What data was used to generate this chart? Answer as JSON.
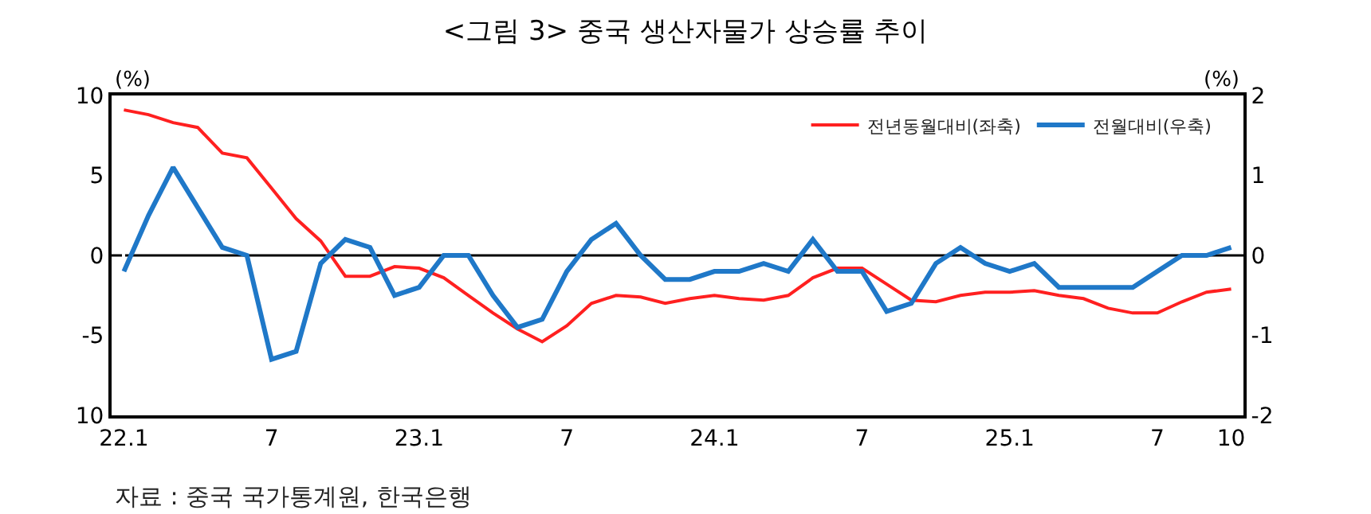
{
  "chart_data": {
    "type": "line",
    "title": "<그림 3> 중국 생산자물가 상승률 추이",
    "ylabel": "(%)",
    "y2label": "(%)",
    "annotations": [
      "자료 : 중국 국가통계원, 한국은행"
    ],
    "categories": [
      "22.1",
      null,
      null,
      null,
      null,
      null,
      "7",
      null,
      null,
      null,
      null,
      null,
      "23.1",
      null,
      null,
      null,
      null,
      null,
      "7",
      null,
      null,
      null,
      null,
      null,
      "24.1",
      null,
      null,
      null,
      null,
      null,
      "7",
      null,
      null,
      null,
      null,
      null,
      "25.1",
      null,
      null,
      null,
      null,
      null,
      "7",
      null,
      null,
      "10"
    ],
    "series": [
      {
        "name": "전년동월대비(좌축)",
        "color": "#ff2020",
        "values": [
          9.1,
          8.8,
          8.3,
          8.0,
          6.4,
          6.1,
          4.2,
          2.3,
          0.9,
          -1.3,
          -1.3,
          -0.7,
          -0.8,
          -1.4,
          -2.5,
          -3.6,
          -4.6,
          -5.4,
          -4.4,
          -3.0,
          -2.5,
          -2.6,
          -3.0,
          -2.7,
          -2.5,
          -2.7,
          -2.8,
          -2.5,
          -1.4,
          -0.8,
          -0.8,
          -1.8,
          -2.8,
          -2.9,
          -2.5,
          -2.3,
          -2.3,
          -2.2,
          -2.5,
          -2.7,
          -3.3,
          -3.6,
          -3.6,
          -2.9,
          -2.3,
          -2.1
        ]
      },
      {
        "name": "전월대비(우축)",
        "color": "#1f78c8",
        "axis": "y2",
        "values": [
          -0.2,
          0.5,
          1.1,
          0.6,
          0.1,
          0.0,
          -1.3,
          -1.2,
          -0.1,
          0.2,
          0.1,
          -0.5,
          -0.4,
          0.0,
          0.0,
          -0.5,
          -0.9,
          -0.8,
          -0.2,
          0.2,
          0.4,
          0.0,
          -0.3,
          -0.3,
          -0.2,
          -0.2,
          -0.1,
          -0.2,
          0.2,
          -0.2,
          -0.2,
          -0.7,
          -0.6,
          -0.1,
          0.1,
          -0.1,
          -0.2,
          -0.1,
          -0.4,
          -0.4,
          -0.4,
          -0.4,
          -0.2,
          0.0,
          0.0,
          0.1
        ]
      }
    ],
    "ylim": [
      -10,
      10
    ],
    "yticks": [
      10,
      5,
      0,
      -5,
      {
        "value": -10,
        "label": "10"
      }
    ],
    "y2lim": [
      -2,
      2
    ],
    "y2ticks": [
      2,
      1,
      0,
      -1,
      -2
    ],
    "ref_lines": [
      {
        "axis": "y",
        "value": 0,
        "color": "#000000"
      }
    ],
    "legend": "top right",
    "grid": false,
    "marker": "none",
    "line_style": "solid"
  }
}
